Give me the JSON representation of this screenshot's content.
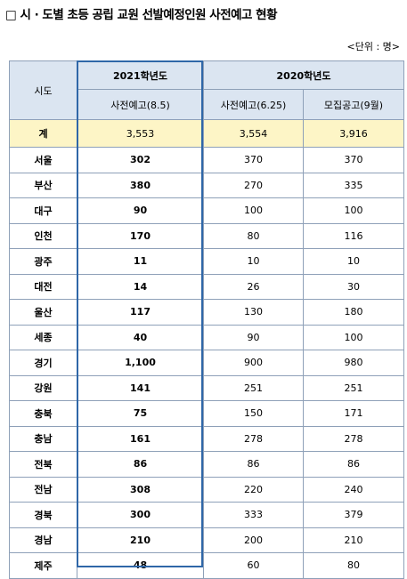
{
  "title": "□ 시 · 도별 초등 공립 교원 선발예정인원 사전예고 현황",
  "unit": "<단위 : 명>",
  "header": {
    "region": "시도",
    "year2021": "2021학년도",
    "year2020": "2020학년도",
    "col_2021_pre": "사전예고(8.5)",
    "col_2020_pre": "사전예고(6.25)",
    "col_2020_recruit": "모집공고(9월)"
  },
  "total": {
    "label": "계",
    "v2021": "3,553",
    "v2020_pre": "3,554",
    "v2020_recruit": "3,916"
  },
  "rows": [
    {
      "region": "서울",
      "v2021": "302",
      "v2020_pre": "370",
      "v2020_recruit": "370"
    },
    {
      "region": "부산",
      "v2021": "380",
      "v2020_pre": "270",
      "v2020_recruit": "335"
    },
    {
      "region": "대구",
      "v2021": "90",
      "v2020_pre": "100",
      "v2020_recruit": "100"
    },
    {
      "region": "인천",
      "v2021": "170",
      "v2020_pre": "80",
      "v2020_recruit": "116"
    },
    {
      "region": "광주",
      "v2021": "11",
      "v2020_pre": "10",
      "v2020_recruit": "10"
    },
    {
      "region": "대전",
      "v2021": "14",
      "v2020_pre": "26",
      "v2020_recruit": "30"
    },
    {
      "region": "울산",
      "v2021": "117",
      "v2020_pre": "130",
      "v2020_recruit": "180"
    },
    {
      "region": "세종",
      "v2021": "40",
      "v2020_pre": "90",
      "v2020_recruit": "100"
    },
    {
      "region": "경기",
      "v2021": "1,100",
      "v2020_pre": "900",
      "v2020_recruit": "980"
    },
    {
      "region": "강원",
      "v2021": "141",
      "v2020_pre": "251",
      "v2020_recruit": "251"
    },
    {
      "region": "충북",
      "v2021": "75",
      "v2020_pre": "150",
      "v2020_recruit": "171"
    },
    {
      "region": "충남",
      "v2021": "161",
      "v2020_pre": "278",
      "v2020_recruit": "278"
    },
    {
      "region": "전북",
      "v2021": "86",
      "v2020_pre": "86",
      "v2020_recruit": "86"
    },
    {
      "region": "전남",
      "v2021": "308",
      "v2020_pre": "220",
      "v2020_recruit": "240"
    },
    {
      "region": "경북",
      "v2021": "300",
      "v2020_pre": "333",
      "v2020_recruit": "379"
    },
    {
      "region": "경남",
      "v2021": "210",
      "v2020_pre": "200",
      "v2020_recruit": "210"
    },
    {
      "region": "제주",
      "v2021": "48",
      "v2020_pre": "60",
      "v2020_recruit": "80"
    }
  ],
  "colors": {
    "header_bg": "#dbe5f1",
    "total_bg": "#fdf5c6",
    "border": "#8ea0b8",
    "highlight_border": "#2f67a8"
  }
}
